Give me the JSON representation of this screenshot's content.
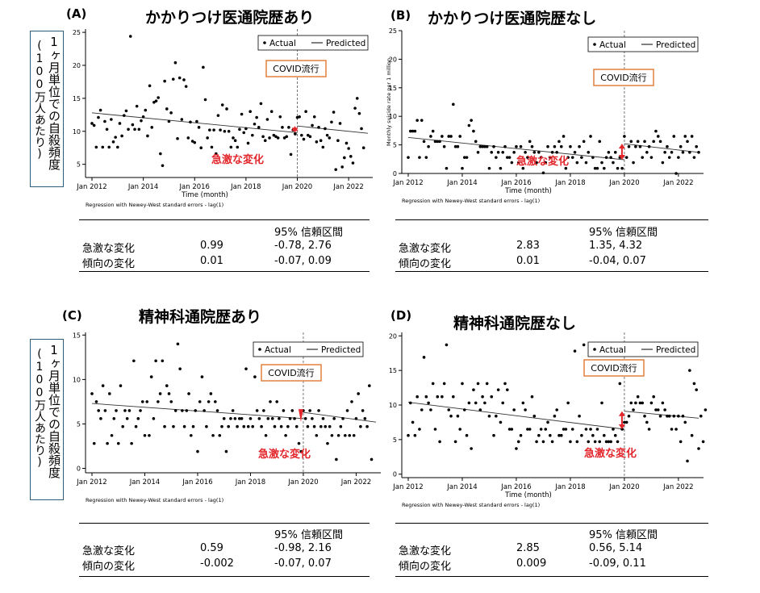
{
  "ylabel_box": {
    "line1": "1ヶ月単位での自殺頻度",
    "line2": "(100万人あたり)"
  },
  "legend": {
    "actual": "Actual",
    "predicted": "Predicted"
  },
  "common": {
    "xlabel": "Time (month)",
    "note": "Regression with Newey-West standard errors - lag(1)",
    "covid_label": "COVID流行",
    "abrupt_label": "急激な変化",
    "ci_header": "95% 信頼区間",
    "row1_label": "急激な変化",
    "row2_label": "傾向の変化"
  },
  "colors": {
    "covid_box_border": "#e2813f",
    "abrupt_text": "#e3262b",
    "arrow": "#e3262b",
    "ylabel_box_border": "#2e5d7a"
  },
  "chart_data": [
    {
      "panel": "(A)",
      "title": "かかりつけ医通院歴あり",
      "type": "scatter",
      "xlabel": "Time (month)",
      "ylabel": "",
      "xticks": [
        "Jan 2012",
        "Jan 2014",
        "Jan 2016",
        "Jan 2018",
        "Jan 2020",
        "Jan 2022"
      ],
      "yticks": [
        "5",
        "10",
        "15",
        "20",
        "25"
      ],
      "ylim": [
        3,
        25.5
      ],
      "covid_x": 96,
      "pre_trend": {
        "start": 12.8,
        "end": 9.8
      },
      "post_trend": {
        "start": 10.8,
        "end": 9.7
      },
      "actual": [
        11.2,
        10.9,
        7.6,
        12.1,
        13.2,
        7.6,
        11.5,
        10.3,
        7.6,
        11.8,
        8.4,
        9.1,
        7.6,
        11.2,
        9.3,
        12.4,
        13.1,
        10.3,
        24.4,
        11.0,
        10.3,
        13.8,
        10.3,
        11.6,
        12.2,
        13.2,
        9.3,
        16.9,
        10.6,
        14.4,
        14.6,
        15.1,
        6.6,
        4.8,
        17.6,
        13.4,
        11.5,
        12.8,
        17.9,
        20.4,
        8.9,
        18.1,
        11.8,
        17.8,
        16.8,
        9.0,
        11.4,
        8.5,
        8.3,
        11.5,
        10.6,
        7.5,
        19.7,
        14.8,
        9.0,
        10.2,
        7.6,
        10.2,
        6.6,
        12.4,
        10.2,
        14.0,
        10.0,
        13.4,
        10.0,
        7.6,
        9.0,
        8.6,
        7.6,
        10.3,
        12.6,
        9.8,
        10.4,
        8.2,
        13.0,
        9.4,
        11.1,
        12.1,
        10.6,
        14.2,
        9.2,
        8.6,
        11.8,
        9.0,
        13.0,
        9.4,
        9.2,
        9.0,
        12.2,
        10.6,
        9.0,
        9.2,
        10.6,
        6.5,
        10.2,
        9.6,
        12.1,
        12.2,
        9.4,
        8.8,
        13.0,
        9.4,
        9.2,
        10.9,
        12.2,
        8.4,
        10.6,
        8.6,
        7.6,
        10.4,
        9.4,
        9.0,
        11.4,
        12.9,
        4.2,
        8.6,
        11.2,
        4.6,
        6.0,
        8.2,
        7.4,
        6.2,
        5.2,
        13.5,
        15.0,
        12.7,
        10.4,
        7.5
      ],
      "stats": {
        "row1_est": "0.99",
        "row1_ci": "-0.78, 2.76",
        "row2_est": "0.01",
        "row2_ci": "-0.07, 0.09"
      }
    },
    {
      "panel": "(B)",
      "title": "かかりつけ医通院歴なし",
      "type": "scatter",
      "xlabel": "Time (month)",
      "ylabel": "Monthly suicide rate per 1 million",
      "xticks": [
        "Jan 2012",
        "Jan 2014",
        "Jan 2016",
        "Jan 2018",
        "Jan 2020",
        "Jan 2022"
      ],
      "yticks": [
        "0",
        "5",
        "10",
        "15",
        "20",
        "25"
      ],
      "ylim": [
        0,
        25
      ],
      "covid_x": 96,
      "pre_trend": {
        "start": 6.3,
        "end": 2.4
      },
      "post_trend": {
        "start": 5.2,
        "end": 3.7
      },
      "actual": [
        2.8,
        7.4,
        7.4,
        7.4,
        9.3,
        2.8,
        9.3,
        5.6,
        2.8,
        4.7,
        6.5,
        7.4,
        5.6,
        5.6,
        5.6,
        6.5,
        4.7,
        0.9,
        6.5,
        6.5,
        12.1,
        4.7,
        4.7,
        6.5,
        0.9,
        2.8,
        2.8,
        8.4,
        9.3,
        7.4,
        5.6,
        3.7,
        4.7,
        4.7,
        4.7,
        4.7,
        0.9,
        3.7,
        4.7,
        2.8,
        3.7,
        0.9,
        3.7,
        4.7,
        2.8,
        2.8,
        1.9,
        3.7,
        4.7,
        1.9,
        4.7,
        0.9,
        3.7,
        2.8,
        5.6,
        4.7,
        3.7,
        1.9,
        3.7,
        2.8,
        0.1,
        1.9,
        4.7,
        2.8,
        3.7,
        4.7,
        3.7,
        5.6,
        4.7,
        6.5,
        0.9,
        2.8,
        4.7,
        2.8,
        3.7,
        1.9,
        4.7,
        2.8,
        5.6,
        1.9,
        3.7,
        6.5,
        2.8,
        0.9,
        0.9,
        5.6,
        1.9,
        0.9,
        2.8,
        3.7,
        2.8,
        1.9,
        3.7,
        0.9,
        2.8,
        0.9,
        6.5,
        2.8,
        4.7,
        5.6,
        1.9,
        4.7,
        5.6,
        4.7,
        2.8,
        5.6,
        3.7,
        4.7,
        2.8,
        5.6,
        7.4,
        6.5,
        5.6,
        1.9,
        3.7,
        4.7,
        2.8,
        3.7,
        6.5,
        0.0,
        2.8,
        4.7,
        3.7,
        6.5,
        5.6,
        3.7,
        6.5,
        2.8,
        4.7,
        3.7
      ],
      "stats": {
        "row1_est": "2.83",
        "row1_ci": "1.35, 4.32",
        "row2_est": "0.01",
        "row2_ci": "-0.04, 0.07"
      }
    },
    {
      "panel": "(C)",
      "title": "精神科通院歴あり",
      "type": "scatter",
      "xlabel": "",
      "ylabel": "",
      "xticks": [
        "Jan 2012",
        "Jan 2014",
        "Jan 2016",
        "Jan 2018",
        "Jan 2020",
        "Jan 2022"
      ],
      "yticks": [
        "0",
        "5",
        "10",
        "15"
      ],
      "ylim": [
        -0.5,
        15.3
      ],
      "covid_x": 96,
      "pre_trend": {
        "start": 7.3,
        "end": 5.6
      },
      "post_trend": {
        "start": 6.3,
        "end": 5.2
      },
      "actual": [
        8.4,
        2.8,
        7.5,
        6.5,
        5.6,
        9.3,
        6.5,
        2.8,
        8.4,
        3.7,
        5.6,
        6.5,
        2.8,
        9.3,
        4.7,
        6.5,
        5.6,
        6.5,
        2.8,
        12.1,
        4.7,
        5.6,
        6.5,
        7.5,
        3.7,
        7.5,
        3.7,
        10.3,
        5.6,
        12.1,
        7.5,
        8.4,
        12.1,
        4.7,
        9.3,
        8.4,
        7.5,
        4.7,
        6.5,
        14.0,
        11.2,
        6.5,
        4.7,
        6.5,
        8.4,
        3.7,
        4.7,
        6.5,
        1.9,
        7.5,
        10.3,
        6.5,
        4.7,
        7.5,
        8.4,
        3.7,
        7.5,
        6.5,
        3.7,
        4.7,
        5.6,
        1.9,
        4.7,
        5.6,
        6.5,
        5.6,
        4.7,
        5.6,
        5.6,
        4.7,
        11.2,
        4.7,
        5.6,
        4.7,
        10.3,
        6.5,
        5.6,
        4.7,
        6.5,
        3.7,
        5.6,
        7.5,
        5.6,
        4.7,
        7.5,
        5.6,
        4.7,
        6.5,
        3.7,
        4.7,
        5.6,
        6.5,
        5.6,
        4.7,
        2.8,
        1.9,
        6.5,
        5.6,
        4.7,
        6.5,
        5.6,
        4.7,
        3.7,
        6.5,
        4.7,
        5.6,
        4.7,
        2.8,
        4.7,
        3.7,
        5.6,
        1.0,
        3.7,
        4.7,
        5.6,
        3.7,
        6.5,
        3.7,
        7.5,
        3.7,
        5.6,
        8.4,
        4.7,
        6.5,
        5.6,
        4.7,
        9.3,
        1.0
      ],
      "stats": {
        "row1_est": "0.59",
        "row1_ci": "-0.98, 2.16",
        "row2_est": "-0.002",
        "row2_ci": "-0.07, 0.07"
      }
    },
    {
      "panel": "(D)",
      "title": "精神科通院歴なし",
      "type": "scatter",
      "xlabel": "Time (month)",
      "ylabel": "",
      "xticks": [
        "Jan 2012",
        "Jan 2014",
        "Jan 2016",
        "Jan 2018",
        "Jan 2020",
        "Jan 2022"
      ],
      "yticks": [
        "0",
        "5",
        "10",
        "15",
        "20"
      ],
      "ylim": [
        -0.5,
        20.5
      ],
      "covid_x": 96,
      "pre_trend": {
        "start": 10.4,
        "end": 6.5
      },
      "post_trend": {
        "start": 9.1,
        "end": 8.1
      },
      "actual": [
        5.6,
        10.3,
        7.5,
        5.6,
        11.2,
        6.5,
        9.3,
        16.9,
        11.2,
        10.3,
        9.3,
        13.1,
        6.5,
        11.2,
        4.7,
        11.2,
        13.1,
        18.7,
        9.3,
        8.4,
        11.2,
        4.7,
        8.4,
        6.5,
        13.1,
        9.3,
        5.6,
        10.3,
        3.7,
        12.2,
        10.3,
        13.1,
        9.3,
        11.2,
        10.3,
        13.1,
        8.4,
        11.2,
        5.6,
        8.4,
        12.2,
        7.5,
        10.3,
        13.1,
        12.2,
        6.5,
        6.5,
        9.3,
        3.7,
        4.7,
        5.6,
        10.3,
        9.3,
        6.5,
        6.5,
        11.2,
        8.4,
        4.7,
        5.6,
        6.5,
        4.7,
        6.5,
        7.5,
        5.6,
        4.7,
        8.4,
        9.3,
        5.6,
        5.6,
        6.5,
        6.5,
        10.3,
        4.7,
        6.5,
        17.8,
        4.7,
        8.4,
        5.6,
        18.7,
        6.5,
        4.7,
        6.5,
        5.6,
        4.7,
        6.5,
        4.7,
        10.3,
        5.6,
        4.7,
        4.7,
        4.7,
        6.5,
        5.6,
        4.7,
        13.1,
        6.5,
        7.5,
        7.5,
        8.4,
        10.3,
        9.3,
        10.3,
        11.2,
        10.3,
        10.3,
        8.4,
        7.5,
        6.5,
        10.3,
        11.2,
        9.3,
        9.3,
        8.4,
        10.3,
        9.3,
        8.4,
        8.4,
        6.5,
        8.4,
        6.5,
        8.4,
        4.7,
        8.4,
        7.5,
        1.9,
        15.0,
        5.6,
        13.1,
        12.2,
        3.7,
        8.4,
        4.7,
        9.3
      ],
      "stats": {
        "row1_est": "2.85",
        "row1_ci": "0.56, 5.14",
        "row2_est": "0.009",
        "row2_ci": "-0.09, 0.11"
      }
    }
  ]
}
